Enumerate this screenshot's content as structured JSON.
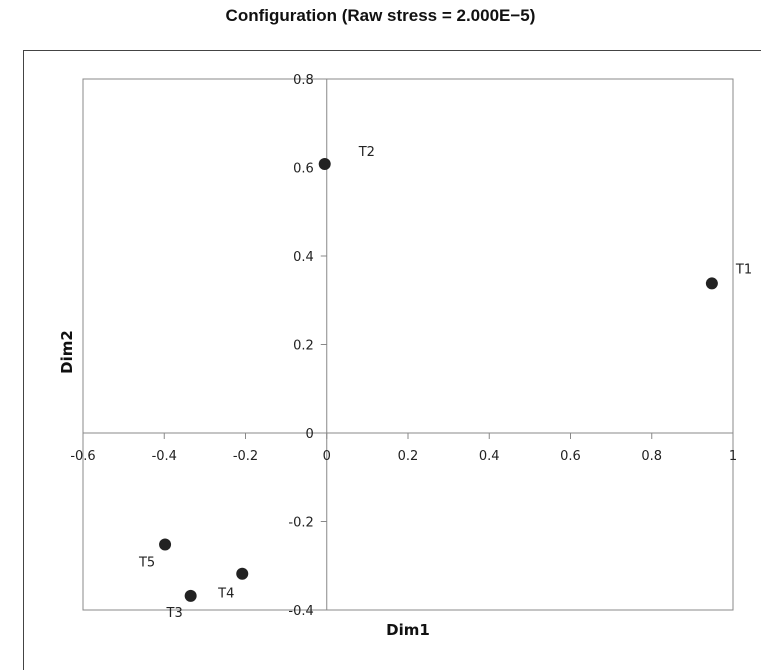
{
  "chart_data": {
    "type": "scatter",
    "title": "Configuration (Raw stress = 2.000E−5)",
    "xlabel": "Dim1",
    "ylabel": "Dim2",
    "xlim": [
      -0.6,
      1.0
    ],
    "ylim": [
      -0.4,
      0.8
    ],
    "x_ticks": [
      -0.6,
      -0.4,
      -0.2,
      0,
      0.2,
      0.4,
      0.6,
      0.8,
      1
    ],
    "x_tick_labels": [
      "-0.6",
      "-0.4",
      "-0.2",
      "0",
      "0.2",
      "0.4",
      "0.6",
      "0.8",
      "1"
    ],
    "y_ticks": [
      -0.4,
      -0.2,
      0,
      0.2,
      0.4,
      0.6,
      0.8
    ],
    "y_tick_labels": [
      "-0.4",
      "-0.2",
      "0",
      "0.2",
      "0.4",
      "0.6",
      "0.8"
    ],
    "grid": false,
    "axes_cross_at_origin": true,
    "points": [
      {
        "label": "T1",
        "x": 0.948,
        "y": 0.338
      },
      {
        "label": "T2",
        "x": -0.005,
        "y": 0.608
      },
      {
        "label": "T3",
        "x": -0.335,
        "y": -0.368
      },
      {
        "label": "T4",
        "x": -0.208,
        "y": -0.318
      },
      {
        "label": "T5",
        "x": -0.398,
        "y": -0.252
      }
    ],
    "colors": {
      "marker": "#222222",
      "axis": "#888888",
      "text": "#222222"
    }
  }
}
